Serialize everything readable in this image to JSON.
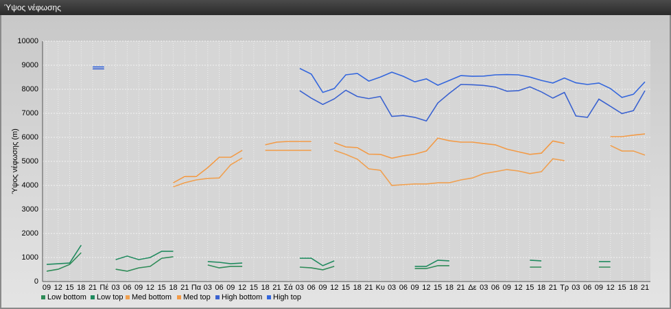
{
  "chart_data": {
    "type": "line",
    "title": "Ύψος νέφωσης",
    "y_label": "Ύψος νέφωσης (m)",
    "categories": [
      "09",
      "12",
      "15",
      "18",
      "21",
      "Πέ",
      "03",
      "06",
      "09",
      "12",
      "15",
      "18",
      "21",
      "Πα",
      "03",
      "06",
      "09",
      "12",
      "15",
      "18",
      "21",
      "Σά",
      "03",
      "06",
      "09",
      "12",
      "15",
      "18",
      "21",
      "Κυ",
      "03",
      "06",
      "09",
      "12",
      "15",
      "18",
      "21",
      "Δε",
      "03",
      "06",
      "09",
      "12",
      "15",
      "18",
      "21",
      "Τρ",
      "03",
      "06",
      "09",
      "12",
      "15",
      "18",
      "21"
    ],
    "ylim": [
      0,
      10000
    ],
    "yticks": [
      0,
      1000,
      2000,
      3000,
      4000,
      5000,
      6000,
      7000,
      8000,
      9000,
      10000
    ],
    "grid": true,
    "legend": "bottom-left",
    "series": [
      {
        "name": "Low bottom",
        "color": "#2e8b57",
        "values": [
          430,
          510,
          710,
          1200,
          null,
          null,
          510,
          430,
          570,
          630,
          970,
          1030,
          null,
          null,
          690,
          570,
          630,
          630,
          null,
          null,
          null,
          null,
          600,
          570,
          490,
          630,
          null,
          null,
          null,
          null,
          null,
          null,
          540,
          540,
          660,
          660,
          null,
          null,
          null,
          null,
          null,
          null,
          600,
          600,
          null,
          null,
          null,
          null,
          600,
          600,
          null,
          null,
          null
        ]
      },
      {
        "name": "Low top",
        "color": "#1f8a5e",
        "values": [
          710,
          740,
          770,
          1510,
          null,
          null,
          910,
          1060,
          910,
          1000,
          1260,
          1260,
          null,
          null,
          830,
          800,
          740,
          770,
          null,
          null,
          null,
          null,
          970,
          970,
          660,
          860,
          null,
          null,
          null,
          null,
          null,
          null,
          630,
          630,
          890,
          860,
          null,
          null,
          null,
          null,
          null,
          null,
          890,
          860,
          null,
          null,
          null,
          null,
          830,
          830,
          null,
          null,
          null
        ]
      },
      {
        "name": "Med bottom",
        "color": "#f0a050",
        "values": [
          null,
          null,
          null,
          null,
          null,
          null,
          null,
          null,
          null,
          null,
          null,
          3940,
          4110,
          4230,
          4290,
          4310,
          4860,
          5140,
          null,
          5460,
          5460,
          5460,
          5460,
          5460,
          null,
          5460,
          5290,
          5090,
          4690,
          4630,
          4000,
          4030,
          4060,
          4060,
          4110,
          4110,
          4230,
          4310,
          4490,
          4570,
          4660,
          4600,
          4490,
          4570,
          5110,
          5030,
          null,
          null,
          null,
          5660,
          5430,
          5430,
          5260
        ]
      },
      {
        "name": "Med top",
        "color": "#f39a45",
        "values": [
          null,
          null,
          null,
          null,
          null,
          null,
          null,
          null,
          null,
          null,
          null,
          4110,
          4370,
          4370,
          4740,
          5170,
          5170,
          5460,
          null,
          5690,
          5800,
          5830,
          5830,
          5830,
          null,
          5780,
          5600,
          5570,
          5300,
          5290,
          5130,
          5230,
          5300,
          5430,
          5970,
          5860,
          5800,
          5800,
          5740,
          5690,
          5510,
          5400,
          5290,
          5340,
          5850,
          5750,
          null,
          null,
          null,
          6030,
          6030,
          6090,
          6140
        ]
      },
      {
        "name": "High bottom",
        "color": "#3a62d0",
        "values": [
          null,
          null,
          null,
          null,
          8850,
          8850,
          null,
          null,
          null,
          null,
          null,
          null,
          null,
          null,
          null,
          null,
          null,
          null,
          null,
          null,
          null,
          null,
          7940,
          7630,
          7370,
          7600,
          7960,
          7700,
          7610,
          7700,
          6870,
          6910,
          6830,
          6680,
          7430,
          7830,
          8200,
          8190,
          8160,
          8090,
          7920,
          7940,
          8100,
          7890,
          7630,
          7870,
          6890,
          6830,
          7590,
          7290,
          6990,
          7110,
          7940
        ]
      },
      {
        "name": "High top",
        "color": "#3366dd",
        "values": [
          null,
          null,
          null,
          null,
          8930,
          8930,
          null,
          null,
          null,
          null,
          null,
          null,
          null,
          null,
          null,
          null,
          null,
          null,
          null,
          null,
          null,
          null,
          8870,
          8630,
          7870,
          8030,
          8600,
          8660,
          8340,
          8510,
          8710,
          8540,
          8310,
          8430,
          8170,
          8370,
          8570,
          8540,
          8550,
          8600,
          8610,
          8600,
          8510,
          8370,
          8260,
          8470,
          8270,
          8200,
          8260,
          8030,
          7660,
          7790,
          8310
        ]
      }
    ]
  }
}
